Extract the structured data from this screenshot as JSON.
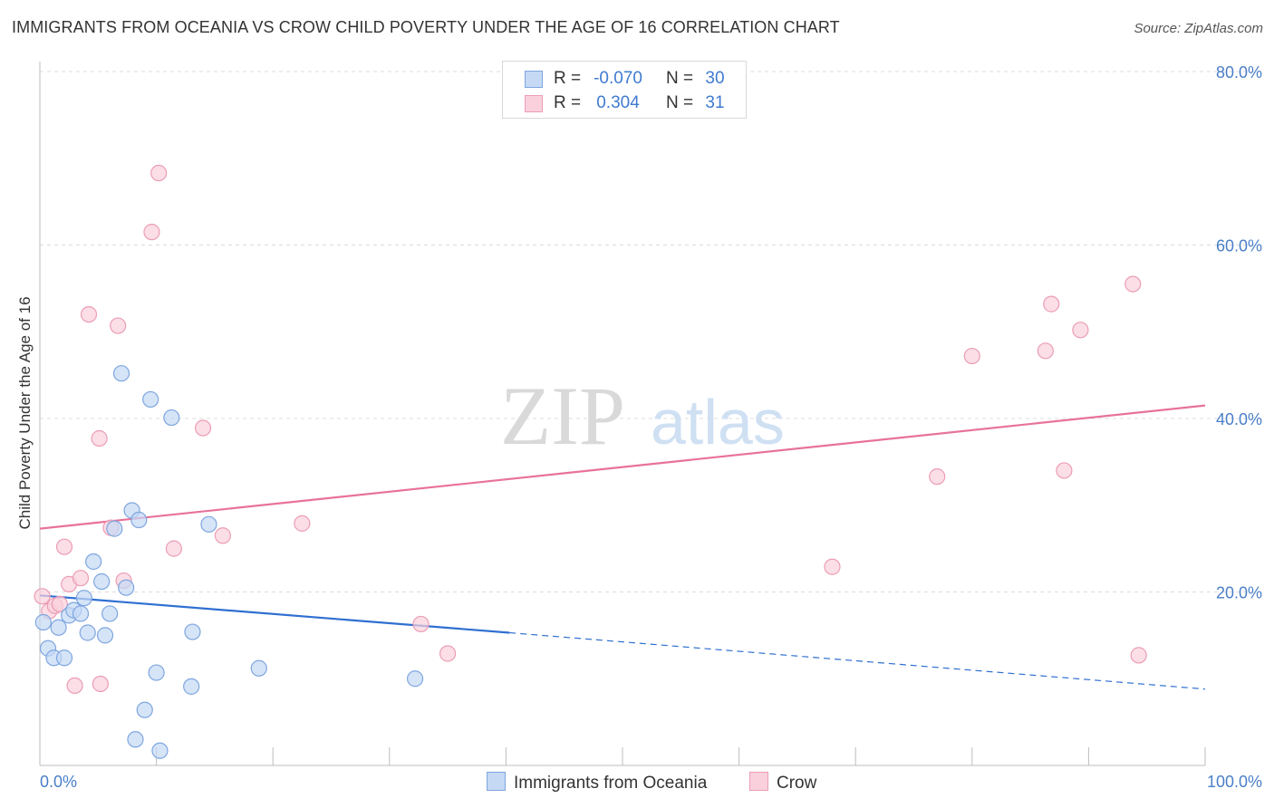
{
  "title": "IMMIGRANTS FROM OCEANIA VS CROW CHILD POVERTY UNDER THE AGE OF 16 CORRELATION CHART",
  "source": "Source: ZipAtlas.com",
  "watermark": {
    "zip": "ZIP",
    "atlas": "atlas"
  },
  "colors": {
    "blue_fill": "#c5d9f5",
    "blue_stroke": "#7ea6df",
    "blue_line": "#2f6fd1",
    "pink_fill": "#f9d0dc",
    "pink_stroke": "#ec9db6",
    "pink_line": "#e8729a",
    "value_text": "#4a7fc8"
  },
  "legend": {
    "rows": [
      {
        "r_label": "R =",
        "r_value": "-0.070",
        "n_label": "N =",
        "n_value": "30"
      },
      {
        "r_label": "R =",
        "r_value": "0.304",
        "n_label": "N =",
        "n_value": "31"
      }
    ]
  },
  "bottom_legend": [
    "Immigrants from Oceania",
    "Crow"
  ],
  "chart_data": {
    "type": "scatter",
    "xlabel": "",
    "ylabel": "Child Poverty Under the Age of 16",
    "xlim": [
      0,
      100
    ],
    "ylim": [
      0,
      80
    ],
    "x_tick_labels": [
      "0.0%",
      "100.0%"
    ],
    "y_ticks": [
      20,
      40,
      60,
      80
    ],
    "y_tick_labels": [
      "20.0%",
      "40.0%",
      "60.0%",
      "80.0%"
    ],
    "grid": true,
    "series": [
      {
        "name": "Immigrants from Oceania",
        "points": [
          [
            0.3,
            16.5
          ],
          [
            0.7,
            13.5
          ],
          [
            1.2,
            12.4
          ],
          [
            1.6,
            15.9
          ],
          [
            2.1,
            12.4
          ],
          [
            2.5,
            17.3
          ],
          [
            2.9,
            17.9
          ],
          [
            3.5,
            17.5
          ],
          [
            3.8,
            19.3
          ],
          [
            4.1,
            15.3
          ],
          [
            4.6,
            23.5
          ],
          [
            5.3,
            21.2
          ],
          [
            5.6,
            15.0
          ],
          [
            6.0,
            17.5
          ],
          [
            6.4,
            27.3
          ],
          [
            7.0,
            45.2
          ],
          [
            7.4,
            20.5
          ],
          [
            7.9,
            29.4
          ],
          [
            8.2,
            3.0
          ],
          [
            8.5,
            28.3
          ],
          [
            9.0,
            6.4
          ],
          [
            9.5,
            42.2
          ],
          [
            10.0,
            10.7
          ],
          [
            10.3,
            1.7
          ],
          [
            11.3,
            40.1
          ],
          [
            13.0,
            9.1
          ],
          [
            13.1,
            15.4
          ],
          [
            14.5,
            27.8
          ],
          [
            18.8,
            11.2
          ],
          [
            32.2,
            10.0
          ]
        ],
        "trend": {
          "x0": 0,
          "y0": 19.6,
          "x_solid_end": 40.3,
          "y_solid_end": 15.3,
          "x1": 100,
          "y1": 8.8
        }
      },
      {
        "name": "Crow",
        "points": [
          [
            0.2,
            19.5
          ],
          [
            0.8,
            17.8
          ],
          [
            1.3,
            18.4
          ],
          [
            1.7,
            18.6
          ],
          [
            2.1,
            25.2
          ],
          [
            2.5,
            20.9
          ],
          [
            3.0,
            9.2
          ],
          [
            3.5,
            21.6
          ],
          [
            4.2,
            52.0
          ],
          [
            5.1,
            37.7
          ],
          [
            5.2,
            9.4
          ],
          [
            6.1,
            27.4
          ],
          [
            6.7,
            50.7
          ],
          [
            7.2,
            21.3
          ],
          [
            9.6,
            61.5
          ],
          [
            10.2,
            68.3
          ],
          [
            11.5,
            25.0
          ],
          [
            14.0,
            38.9
          ],
          [
            15.7,
            26.5
          ],
          [
            22.5,
            27.9
          ],
          [
            32.7,
            16.3
          ],
          [
            35.0,
            12.9
          ],
          [
            68.0,
            22.9
          ],
          [
            77.0,
            33.3
          ],
          [
            80.0,
            47.2
          ],
          [
            86.3,
            47.8
          ],
          [
            86.8,
            53.2
          ],
          [
            87.9,
            34.0
          ],
          [
            89.3,
            50.2
          ],
          [
            93.8,
            55.5
          ],
          [
            94.3,
            12.7
          ]
        ],
        "trend": {
          "x0": 0,
          "y0": 27.3,
          "x1": 100,
          "y1": 41.5
        }
      }
    ]
  }
}
